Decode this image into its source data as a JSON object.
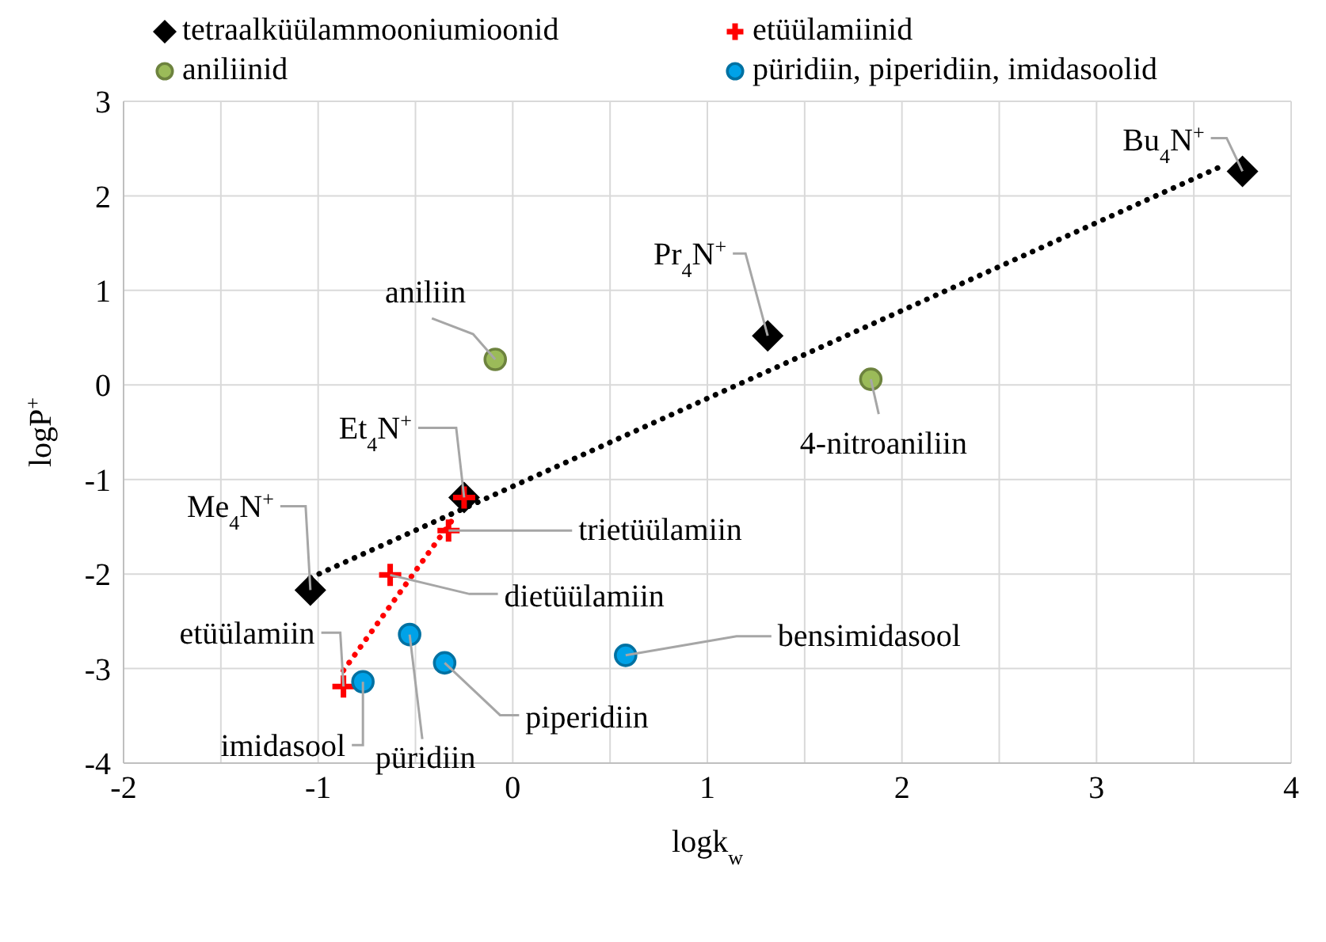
{
  "chart_data": {
    "type": "scatter",
    "xlabel": "logk$_{w}$",
    "ylabel": "logP$^{+}$",
    "xlim": [
      -2,
      4
    ],
    "xticks": [
      -2,
      {
        "value": -1.5,
        "label": null
      },
      -1,
      {
        "value": -0.5,
        "label": null
      },
      0,
      {
        "value": 0.5,
        "label": null
      },
      1,
      {
        "value": 1.5,
        "label": null
      },
      2,
      {
        "value": 2.5,
        "label": null
      },
      3,
      {
        "value": 3.5,
        "label": null
      },
      4
    ],
    "ylim": [
      -4,
      3
    ],
    "yticks": [
      -4,
      -3,
      -2,
      -1,
      0,
      1,
      2,
      3
    ],
    "grid": true,
    "legend": "top",
    "series": [
      {
        "name": "tetraalküülammooniumioonid",
        "color": "#000000",
        "marker": "diamond",
        "x": [
          -1.04,
          -0.25,
          1.31,
          3.75
        ],
        "values": [
          -2.17,
          -1.19,
          0.52,
          2.26
        ]
      },
      {
        "name": "etüülamiinid",
        "color": "#ff0000",
        "marker": "cross",
        "x": [
          -0.87,
          -0.63,
          -0.33,
          -0.25
        ],
        "values": [
          -3.19,
          -2.01,
          -1.54,
          -1.19
        ]
      },
      {
        "name": "aniliinid",
        "color": "#9bbb59",
        "marker": "circle",
        "x": [
          -0.09,
          1.84
        ],
        "values": [
          0.27,
          0.06
        ]
      },
      {
        "name": "püridiin, piperidiin, imidasoolid",
        "color": "#00a2e8",
        "marker": "circle",
        "x": [
          -0.77,
          -0.53,
          -0.35,
          0.58
        ],
        "values": [
          -3.14,
          -2.64,
          -2.94,
          -2.86
        ]
      },
      {
        "type": "line",
        "color": "#000000",
        "line_style": "dotted",
        "marker": "none",
        "x": [
          -1.04,
          3.66
        ],
        "values": [
          -2.04,
          2.33
        ]
      },
      {
        "type": "line",
        "color": "#ff0000",
        "line_style": "dotted",
        "marker": "none",
        "x": [
          -0.87,
          -0.29
        ],
        "values": [
          -3.02,
          -1.37
        ]
      }
    ],
    "annotations": [
      {
        "text": "Bu$_{4}$N$^{+}$",
        "x": 3.75,
        "y": 2.26
      },
      {
        "text": "Pr$_{4}$N$^{+}$",
        "x": 1.31,
        "y": 0.52
      },
      {
        "text": "aniliin",
        "x": -0.09,
        "y": 0.27
      },
      {
        "text": "4-nitroaniliin",
        "x": 1.84,
        "y": 0.06
      },
      {
        "text": "Et$_{4}$N$^{+}$",
        "x": -0.25,
        "y": -1.19
      },
      {
        "text": "Me$_{4}$N$^{+}$",
        "x": -1.04,
        "y": -2.17
      },
      {
        "text": "trietüülamiin",
        "x": -0.33,
        "y": -1.54
      },
      {
        "text": "dietüülamiin",
        "x": -0.63,
        "y": -2.01
      },
      {
        "text": "bensimidasool",
        "x": 0.58,
        "y": -2.86
      },
      {
        "text": "piperidiin",
        "x": -0.35,
        "y": -2.94
      },
      {
        "text": "püridiin",
        "x": -0.53,
        "y": -2.64
      },
      {
        "text": "imidasool",
        "x": -0.77,
        "y": -3.14
      },
      {
        "text": "etüülamiin",
        "x": -0.87,
        "y": -3.19
      }
    ]
  }
}
